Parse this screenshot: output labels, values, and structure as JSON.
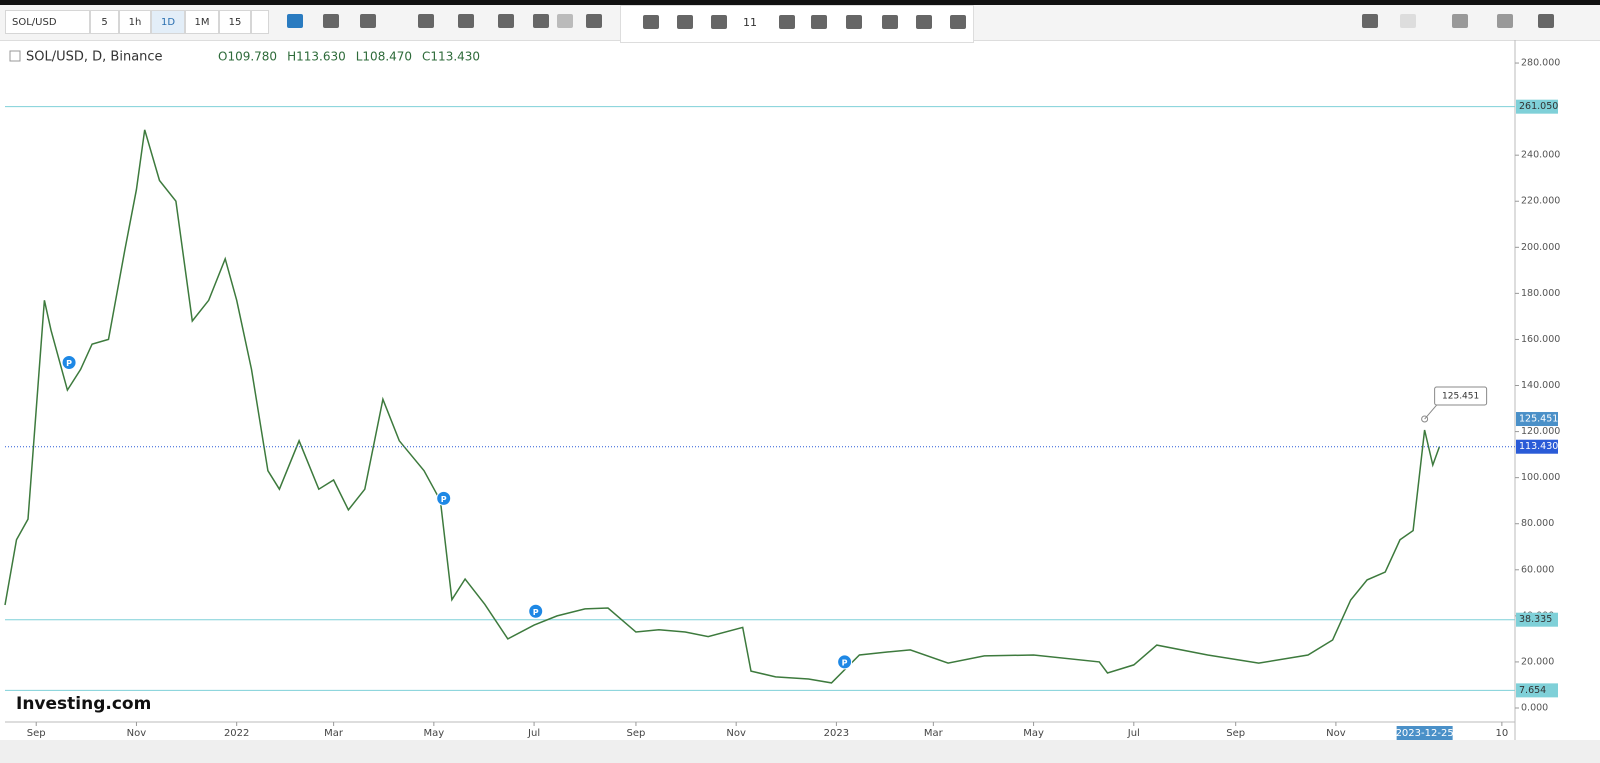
{
  "toolbar": {
    "symbol": "SOL/USD",
    "intervals": [
      "5",
      "1h",
      "1D",
      "1M",
      "15"
    ],
    "line_width": "11"
  },
  "legend": {
    "symbol": "SOL/USD, D, Binance",
    "ohlc": [
      "O109.780",
      "H113.630",
      "L108.470",
      "C113.430"
    ]
  },
  "logo": "Investing.com",
  "chart_data": {
    "type": "line",
    "xlim": [
      "2021-08-13",
      "2024-02-18"
    ],
    "ylim": [
      -6.08,
      290
    ],
    "yticks": [
      {
        "value": 0,
        "label": "0.000"
      },
      {
        "value": 20,
        "label": "20.000"
      },
      {
        "value": 40,
        "label": "40.000"
      },
      {
        "value": 60,
        "label": "60.000"
      },
      {
        "value": 80,
        "label": "80.000"
      },
      {
        "value": 100,
        "label": "100.000"
      },
      {
        "value": 120,
        "label": "120.000"
      },
      {
        "value": 140,
        "label": "140.000"
      },
      {
        "value": 160,
        "label": "160.000"
      },
      {
        "value": 180,
        "label": "180.000"
      },
      {
        "value": 200,
        "label": "200.000"
      },
      {
        "value": 220,
        "label": "220.000"
      },
      {
        "value": 240,
        "label": "240.000"
      },
      {
        "value": 280,
        "label": "280.000"
      }
    ],
    "xticks": [
      {
        "value": "2021-09-01",
        "label": "Sep"
      },
      {
        "value": "2021-11-01",
        "label": "Nov"
      },
      {
        "value": "2022-01-01",
        "label": "2022"
      },
      {
        "value": "2022-03-01",
        "label": "Mar"
      },
      {
        "value": "2022-05-01",
        "label": "May"
      },
      {
        "value": "2022-07-01",
        "label": "Jul"
      },
      {
        "value": "2022-09-01",
        "label": "Sep"
      },
      {
        "value": "2022-11-01",
        "label": "Nov"
      },
      {
        "value": "2023-01-01",
        "label": "2023"
      },
      {
        "value": "2023-03-01",
        "label": "Mar"
      },
      {
        "value": "2023-05-01",
        "label": "May"
      },
      {
        "value": "2023-07-01",
        "label": "Jul"
      },
      {
        "value": "2023-09-01",
        "label": "Sep"
      },
      {
        "value": "2023-11-01",
        "label": "Nov"
      },
      {
        "value": "2024-02-10",
        "label": "10"
      }
    ],
    "cursor_date": "2023-12-25",
    "series": [
      {
        "name": "SOL/USD",
        "color": "#3d7a3d",
        "x": [
          "2021-08-13",
          "2021-08-20",
          "2021-08-27",
          "2021-09-06",
          "2021-09-10",
          "2021-09-20",
          "2021-09-28",
          "2021-10-05",
          "2021-10-15",
          "2021-10-25",
          "2021-11-01",
          "2021-11-06",
          "2021-11-15",
          "2021-11-25",
          "2021-12-05",
          "2021-12-15",
          "2021-12-25",
          "2022-01-01",
          "2022-01-10",
          "2022-01-20",
          "2022-01-27",
          "2022-02-08",
          "2022-02-20",
          "2022-03-01",
          "2022-03-10",
          "2022-03-20",
          "2022-03-31",
          "2022-04-10",
          "2022-04-25",
          "2022-05-05",
          "2022-05-12",
          "2022-05-20",
          "2022-06-01",
          "2022-06-15",
          "2022-07-01",
          "2022-07-15",
          "2022-08-01",
          "2022-08-15",
          "2022-09-01",
          "2022-09-15",
          "2022-10-01",
          "2022-10-15",
          "2022-11-05",
          "2022-11-10",
          "2022-11-25",
          "2022-12-15",
          "2022-12-29",
          "2023-01-15",
          "2023-02-01",
          "2023-02-15",
          "2023-03-10",
          "2023-04-01",
          "2023-05-01",
          "2023-06-10",
          "2023-06-15",
          "2023-07-01",
          "2023-07-15",
          "2023-08-15",
          "2023-09-15",
          "2023-10-15",
          "2023-10-30",
          "2023-11-10",
          "2023-11-20",
          "2023-12-01",
          "2023-12-10",
          "2023-12-18",
          "2023-12-25",
          "2023-12-30",
          "2024-01-03"
        ],
        "values": [
          44.7,
          73,
          82,
          177,
          164,
          138,
          147,
          158,
          160,
          199,
          225,
          251,
          229,
          220,
          168,
          177,
          195,
          177,
          147,
          103,
          95,
          116,
          95,
          99,
          86,
          95,
          134,
          116,
          103,
          90,
          47,
          56,
          45,
          30,
          36,
          40,
          43,
          43.4,
          33,
          34,
          33,
          31,
          35,
          16,
          13.5,
          12.6,
          10.9,
          23,
          24.3,
          25.2,
          19.5,
          22.6,
          23,
          20,
          15.2,
          18.7,
          27.3,
          23,
          19.5,
          23,
          29.5,
          46.9,
          55.6,
          59,
          73,
          77,
          120.7,
          105.5,
          113.43
        ]
      }
    ],
    "hlines": [
      {
        "value": 261.05,
        "label": "261.050",
        "color": "#7fd0d8"
      },
      {
        "value": 38.335,
        "label": "38.335",
        "color": "#7fd0d8"
      },
      {
        "value": 7.654,
        "label": "7.654",
        "color": "#7fd0d8"
      }
    ],
    "last_price": {
      "value": 113.43,
      "label": "113.430",
      "color": "#2a5bd7"
    },
    "callout": {
      "x": "2023-12-25",
      "value": 125.451,
      "label": "125.451"
    },
    "markers": [
      {
        "x": "2021-09-21",
        "value": 150,
        "label": "P"
      },
      {
        "x": "2022-05-07",
        "value": 91,
        "label": "P"
      },
      {
        "x": "2022-07-02",
        "value": 42,
        "label": "P"
      },
      {
        "x": "2023-01-06",
        "value": 20,
        "label": "P"
      }
    ]
  }
}
